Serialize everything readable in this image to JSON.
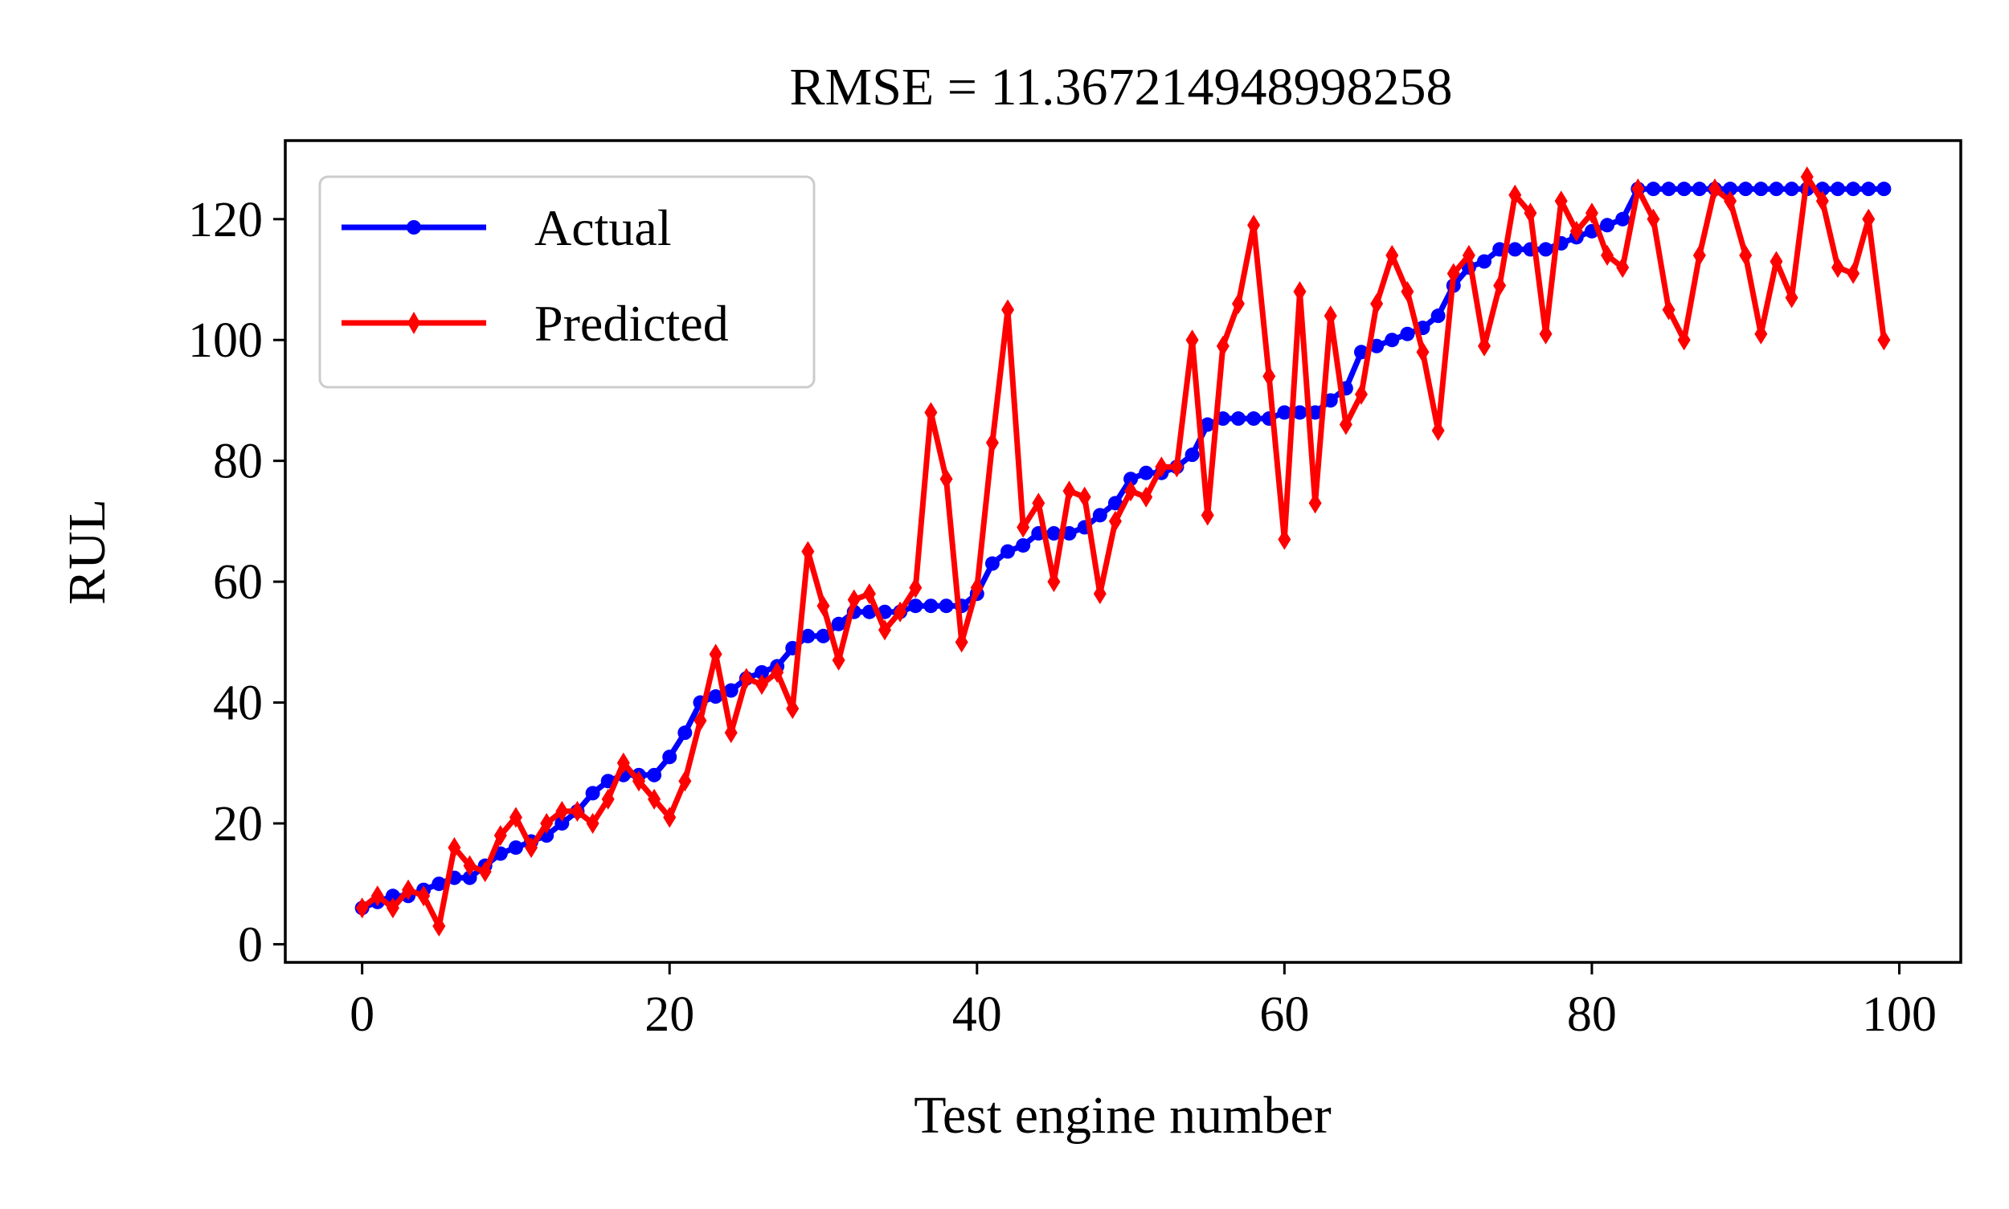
{
  "chart_data": {
    "type": "line",
    "title": "RMSE = 11.367214948998258",
    "xlabel": "Test engine number",
    "ylabel": "RUL",
    "xlim": [
      -5,
      104
    ],
    "ylim": [
      -3,
      133
    ],
    "xticks": [
      0,
      20,
      40,
      60,
      80,
      100
    ],
    "yticks": [
      0,
      20,
      40,
      60,
      80,
      100,
      120
    ],
    "xtick_labels": [
      "0",
      "20",
      "40",
      "60",
      "80",
      "100"
    ],
    "ytick_labels": [
      "0",
      "20",
      "40",
      "60",
      "80",
      "100",
      "120"
    ],
    "grid": false,
    "legend": {
      "placement": "upper-left"
    },
    "series": [
      {
        "name": "Actual",
        "color": "#0000ff",
        "marker": "circle",
        "x": [
          0,
          1,
          2,
          3,
          4,
          5,
          6,
          7,
          8,
          9,
          10,
          11,
          12,
          13,
          14,
          15,
          16,
          17,
          18,
          19,
          20,
          21,
          22,
          23,
          24,
          25,
          26,
          27,
          28,
          29,
          30,
          31,
          32,
          33,
          34,
          35,
          36,
          37,
          38,
          39,
          40,
          41,
          42,
          43,
          44,
          45,
          46,
          47,
          48,
          49,
          50,
          51,
          52,
          53,
          54,
          55,
          56,
          57,
          58,
          59,
          60,
          61,
          62,
          63,
          64,
          65,
          66,
          67,
          68,
          69,
          70,
          71,
          72,
          73,
          74,
          75,
          76,
          77,
          78,
          79,
          80,
          81,
          82,
          83,
          84,
          85,
          86,
          87,
          88,
          89,
          90,
          91,
          92,
          93,
          94,
          95,
          96,
          97,
          98,
          99
        ],
        "values": [
          6,
          7,
          8,
          8,
          9,
          10,
          11,
          11,
          13,
          15,
          16,
          17,
          18,
          20,
          22,
          25,
          27,
          28,
          28,
          28,
          31,
          35,
          40,
          41,
          42,
          44,
          45,
          46,
          49,
          51,
          51,
          53,
          55,
          55,
          55,
          55,
          56,
          56,
          56,
          56,
          58,
          63,
          65,
          66,
          68,
          68,
          68,
          69,
          71,
          73,
          77,
          78,
          78,
          79,
          81,
          86,
          87,
          87,
          87,
          87,
          88,
          88,
          88,
          90,
          92,
          98,
          99,
          100,
          101,
          102,
          104,
          109,
          112,
          113,
          115,
          115,
          115,
          115,
          116,
          117,
          118,
          119,
          120,
          125,
          125,
          125,
          125,
          125,
          125,
          125,
          125,
          125,
          125,
          125,
          125,
          125,
          125,
          125,
          125,
          125
        ]
      },
      {
        "name": "Predicted",
        "color": "#ff0000",
        "marker": "thin_diamond",
        "x": [
          0,
          1,
          2,
          3,
          4,
          5,
          6,
          7,
          8,
          9,
          10,
          11,
          12,
          13,
          14,
          15,
          16,
          17,
          18,
          19,
          20,
          21,
          22,
          23,
          24,
          25,
          26,
          27,
          28,
          29,
          30,
          31,
          32,
          33,
          34,
          35,
          36,
          37,
          38,
          39,
          40,
          41,
          42,
          43,
          44,
          45,
          46,
          47,
          48,
          49,
          50,
          51,
          52,
          53,
          54,
          55,
          56,
          57,
          58,
          59,
          60,
          61,
          62,
          63,
          64,
          65,
          66,
          67,
          68,
          69,
          70,
          71,
          72,
          73,
          74,
          75,
          76,
          77,
          78,
          79,
          80,
          81,
          82,
          83,
          84,
          85,
          86,
          87,
          88,
          89,
          90,
          91,
          92,
          93,
          94,
          95,
          96,
          97,
          98,
          99
        ],
        "values": [
          6,
          8,
          6,
          9,
          8,
          3,
          16,
          13,
          12,
          18,
          21,
          16,
          20,
          22,
          22,
          20,
          24,
          30,
          27,
          24,
          21,
          27,
          37,
          48,
          35,
          44,
          43,
          45,
          39,
          65,
          56,
          47,
          57,
          58,
          52,
          55,
          59,
          88,
          77,
          50,
          59,
          83,
          105,
          69,
          73,
          60,
          75,
          74,
          58,
          70,
          75,
          74,
          79,
          79,
          100,
          71,
          99,
          106,
          119,
          94,
          67,
          108,
          73,
          104,
          86,
          91,
          106,
          114,
          108,
          98,
          85,
          111,
          114,
          99,
          109,
          124,
          121,
          101,
          123,
          118,
          121,
          114,
          112,
          125,
          120,
          105,
          100,
          114,
          125,
          123,
          114,
          101,
          113,
          107,
          127,
          123,
          112,
          111,
          120,
          100
        ]
      }
    ]
  }
}
